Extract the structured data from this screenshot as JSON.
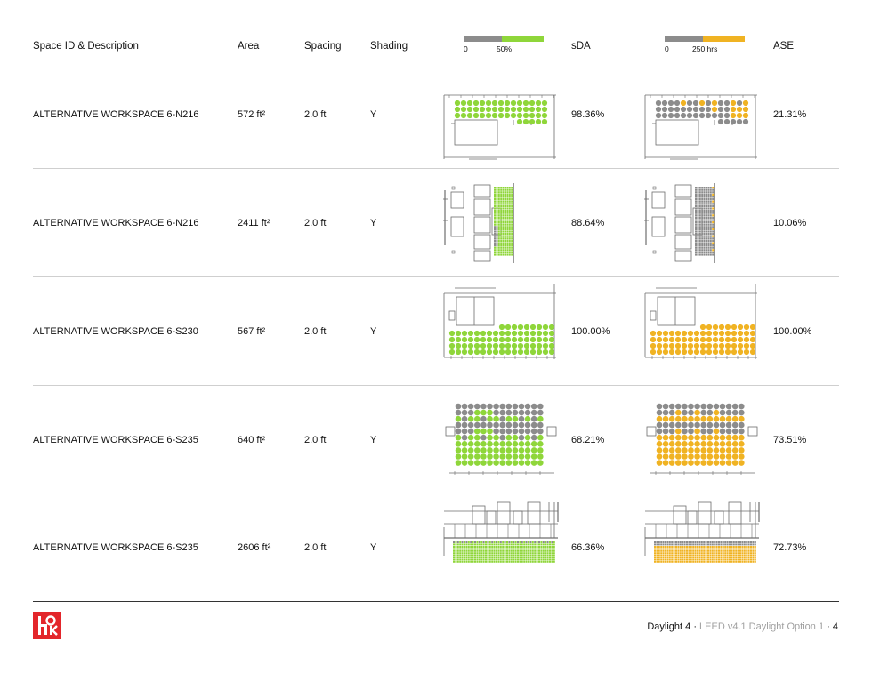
{
  "header": {
    "space_id": "Space ID & Description",
    "area": "Area",
    "spacing": "Spacing",
    "shading": "Shading",
    "sda": "sDA",
    "ase": "ASE"
  },
  "legend_sda": {
    "min": "0",
    "max": "50%",
    "color_low": "#8c8c8c",
    "color_high": "#8fd63a"
  },
  "legend_ase": {
    "min": "0",
    "max": "250 hrs",
    "color_low": "#8c8c8c",
    "color_high": "#f0b323"
  },
  "rows": [
    {
      "space": "ALTERNATIVE WORKSPACE 6-N216",
      "area": "572 ft²",
      "spacing": "2.0 ft",
      "shading": "Y",
      "sda": "98.36%",
      "ase": "21.31%",
      "sda_value": 98.36,
      "ase_value": 21.31
    },
    {
      "space": "ALTERNATIVE WORKSPACE 6-N216",
      "area": "2411 ft²",
      "spacing": "2.0 ft",
      "shading": "Y",
      "sda": "88.64%",
      "ase": "10.06%",
      "sda_value": 88.64,
      "ase_value": 10.06
    },
    {
      "space": "ALTERNATIVE WORKSPACE 6-S230",
      "area": "567 ft²",
      "spacing": "2.0 ft",
      "shading": "Y",
      "sda": "100.00%",
      "ase": "100.00%",
      "sda_value": 100.0,
      "ase_value": 100.0
    },
    {
      "space": "ALTERNATIVE WORKSPACE 6-S235",
      "area": "640 ft²",
      "spacing": "2.0 ft",
      "shading": "Y",
      "sda": "68.21%",
      "ase": "73.51%",
      "sda_value": 68.21,
      "ase_value": 73.51
    },
    {
      "space": "ALTERNATIVE WORKSPACE 6-S235",
      "area": "2606 ft²",
      "spacing": "2.0 ft",
      "shading": "Y",
      "sda": "66.36%",
      "ase": "72.73%",
      "sda_value": 66.36,
      "ase_value": 72.73
    }
  ],
  "footer": {
    "section": "Daylight 4",
    "separator": "·",
    "subtitle": "LEED v4.1 Daylight Option 1",
    "page": "4"
  },
  "logo": {
    "name": "hok-logo",
    "color": "#e3262b"
  }
}
